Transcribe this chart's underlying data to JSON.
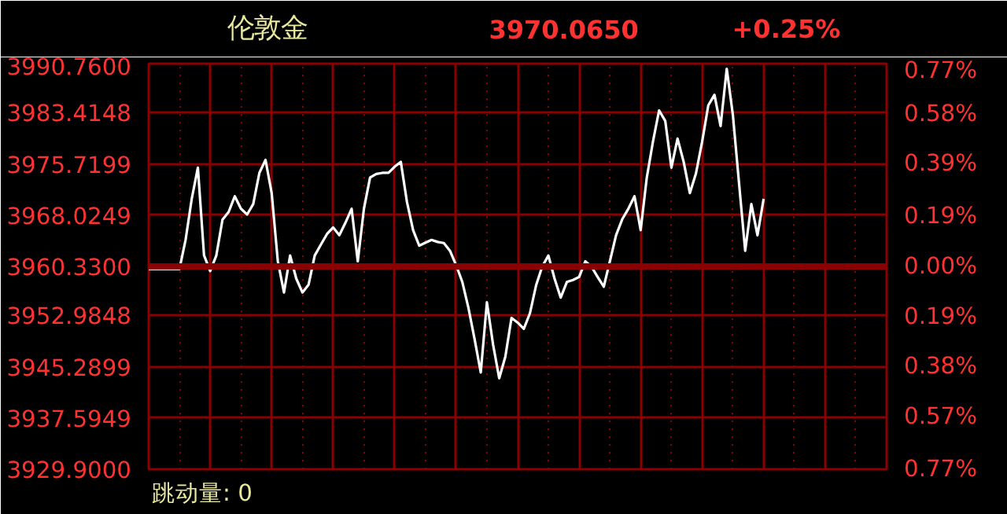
{
  "chart_data": {
    "type": "line",
    "title": "伦敦金",
    "annotations": [
      "3970.0650",
      "+0.25%",
      "跳动量: 0"
    ],
    "categories": [
      null,
      null,
      null,
      null,
      null,
      null,
      null,
      null,
      null,
      null,
      null,
      null,
      null,
      null,
      null,
      null,
      null,
      null,
      null,
      null,
      null,
      null,
      null,
      null,
      null,
      null,
      null,
      null,
      null,
      null,
      null,
      null,
      null,
      null,
      null,
      null,
      null,
      null,
      null,
      null,
      null,
      null,
      null,
      null,
      null,
      null,
      null,
      null,
      null,
      null,
      null,
      null,
      null,
      null,
      null,
      null,
      null,
      null,
      null,
      null,
      null,
      null,
      null,
      null,
      null,
      null,
      null,
      null,
      null,
      null,
      null,
      null,
      null,
      null,
      null,
      null,
      null,
      null,
      null,
      null,
      null,
      null,
      null,
      null,
      null,
      null,
      null,
      null,
      null,
      null,
      null,
      null,
      null,
      null,
      null,
      null,
      null,
      null,
      null,
      null,
      null,
      null,
      null,
      null,
      null,
      null,
      null,
      null,
      null,
      null,
      null,
      null,
      null,
      null,
      null,
      null,
      null,
      null,
      null,
      null,
      null
    ],
    "ylim": [
      3929.9,
      3990.76
    ],
    "yticks": [
      {
        "value": 3990.76,
        "label": "3990.7600"
      },
      {
        "value": 3983.4148,
        "label": "3983.4148"
      },
      {
        "value": 3975.7199,
        "label": "3975.7199"
      },
      {
        "value": 3968.0249,
        "label": "3968.0249"
      },
      {
        "value": 3960.33,
        "label": "3960.3300"
      },
      {
        "value": 3952.9848,
        "label": "3952.9848"
      },
      {
        "value": 3945.2899,
        "label": "3945.2899"
      },
      {
        "value": 3937.5949,
        "label": "3937.5949"
      },
      {
        "value": 3929.9,
        "label": "3929.9000"
      }
    ],
    "y2lim": [
      -0.77,
      0.77
    ],
    "y2ticks": [
      {
        "value": 0.77,
        "label": "0.77%"
      },
      {
        "value": 0.58,
        "label": "0.58%"
      },
      {
        "value": 0.39,
        "label": "0.39%"
      },
      {
        "value": 0.19,
        "label": "0.19%"
      },
      {
        "value": 0,
        "label": "0.00%"
      },
      {
        "value": -0.19,
        "label": "0.19%"
      },
      {
        "value": -0.38,
        "label": "0.38%"
      },
      {
        "value": -0.57,
        "label": "0.57%"
      },
      {
        "value": -0.77,
        "label": "0.77%"
      }
    ],
    "grid": true,
    "ref_lines": [
      {
        "axis": "y",
        "value": 3960.33,
        "label": null,
        "color": "#8b0000"
      }
    ],
    "series": [
      {
        "color": "#ffffff",
        "values": [
          3959.93,
          3959.93,
          3959.93,
          3959.93,
          3959.93,
          3959.93,
          3964.31,
          3970.47,
          3975.15,
          3962.0,
          3959.63,
          3961.97,
          3967.35,
          3968.5,
          3970.86,
          3969.0,
          3968.12,
          3969.69,
          3974.37,
          3976.32,
          3971.33,
          3961.1,
          3956.42,
          3961.97,
          3958.5,
          3956.42,
          3957.59,
          3961.97,
          3963.6,
          3965.2,
          3966.18,
          3965.01,
          3966.9,
          3968.99,
          3961.1,
          3968.99,
          3973.67,
          3974.2,
          3974.37,
          3974.37,
          3975.3,
          3976.01,
          3970.0,
          3965.78,
          3963.44,
          3963.9,
          3964.31,
          3964.0,
          3963.84,
          3962.67,
          3960.5,
          3958.0,
          3954.08,
          3949.4,
          3944.41,
          3954.95,
          3948.63,
          3943.55,
          3946.8,
          3952.6,
          3951.9,
          3950.97,
          3953.31,
          3957.5,
          3960.33,
          3961.97,
          3958.5,
          3955.65,
          3957.99,
          3958.3,
          3958.76,
          3961.1,
          3960.3,
          3958.76,
          3957.29,
          3961.1,
          3965.01,
          3967.4,
          3968.99,
          3970.86,
          3965.78,
          3973.67,
          3979.06,
          3983.74,
          3982.17,
          3975.15,
          3979.52,
          3976.0,
          3971.33,
          3974.3,
          3979.06,
          3984.51,
          3986.08,
          3981.4,
          3989.99,
          3983.04,
          3972.81,
          3962.67,
          3969.69,
          3965.01,
          3970.47,
          null,
          null,
          null,
          null,
          null,
          null,
          null,
          null,
          null,
          null,
          null,
          null,
          null,
          null,
          null,
          null,
          null,
          null,
          null,
          null
        ]
      }
    ]
  }
}
